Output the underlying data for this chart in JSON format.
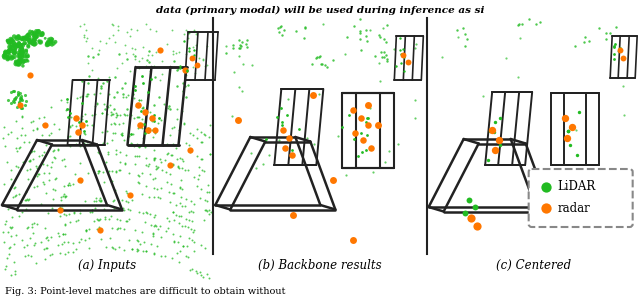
{
  "figure_title_top": "data (primary modal) will be used during inference as si",
  "figure_caption": "Fig. 3: Point-level matches are difficult to obtain without",
  "panel_labels": [
    "(a) Inputs",
    "(b) Backbone results",
    "(c) Centered"
  ],
  "legend_labels": [
    "LiDAR",
    "radar"
  ],
  "lidar_color": "#22bb22",
  "radar_color": "#ff7700",
  "box_color": "#222222",
  "background_color": "#ffffff",
  "panel_divider_color": "#333333"
}
